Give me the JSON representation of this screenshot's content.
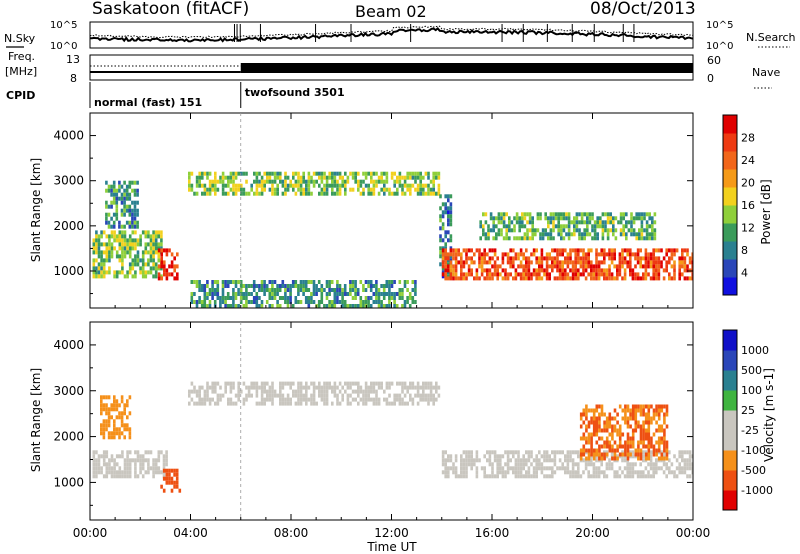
{
  "header": {
    "title": "Saskatoon (fitACF)",
    "beam": "Beam 02",
    "date": "08/Oct/2013"
  },
  "noise_panel": {
    "left_label": "N.Sky",
    "right_label": "N.Search",
    "left_ticks": [
      "10^5",
      "10^0"
    ],
    "right_ticks": [
      "10^5",
      "10^0"
    ]
  },
  "freq_panel": {
    "left_label_1": "Freq.",
    "left_label_2": "[MHz]",
    "left_ticks": [
      "13",
      "8"
    ],
    "right_label": "Nave",
    "right_ticks": [
      "60",
      "0"
    ]
  },
  "cpid": {
    "label": "CPID",
    "modes": [
      {
        "name": "normal (fast) 151",
        "start_hour": 0
      },
      {
        "name": "twofsound 3501",
        "start_hour": 6
      }
    ]
  },
  "time_axis": {
    "xlabel": "Time UT",
    "ticks": [
      "00:00",
      "04:00",
      "08:00",
      "12:00",
      "16:00",
      "20:00",
      "00:00"
    ]
  },
  "colors": {
    "power_scale": [
      "#1010e0",
      "#2a46b8",
      "#2a8090",
      "#3a9b5a",
      "#8fcf3a",
      "#f2d11e",
      "#f59a18",
      "#f2661a",
      "#ee3a12",
      "#e00000"
    ],
    "velocity_scale": [
      "#e00000",
      "#ee5012",
      "#f5901a",
      "#c9c6bf",
      "#c9c6bf",
      "#3fb43f",
      "#2a8090",
      "#2a46b8",
      "#1010c8"
    ]
  },
  "chart_data": [
    {
      "type": "heatmap",
      "title": "Power",
      "xlabel": "Time UT",
      "ylabel": "Slant Range [km]",
      "xlim": [
        0,
        24
      ],
      "ylim": [
        180,
        4500
      ],
      "y_ticks": [
        1000,
        2000,
        3000,
        4000
      ],
      "colorbar": {
        "label": "Power [dB]",
        "ticks": [
          "4",
          "8",
          "12",
          "16",
          "20",
          "24",
          "28"
        ],
        "range": [
          0,
          32
        ]
      },
      "grid": false,
      "features": [
        {
          "t_start": 0.1,
          "t_end": 2.8,
          "range_start": 900,
          "range_end": 1900,
          "power_db": 14
        },
        {
          "t_start": 2.7,
          "t_end": 3.5,
          "range_start": 800,
          "range_end": 1500,
          "power_db": 28
        },
        {
          "t_start": 0.6,
          "t_end": 1.9,
          "range_start": 2000,
          "range_end": 3000,
          "power_db": 10
        },
        {
          "t_start": 3.9,
          "t_end": 13.9,
          "range_start": 2700,
          "range_end": 3200,
          "power_db": 14
        },
        {
          "t_start": 13.9,
          "t_end": 14.4,
          "range_start": 900,
          "range_end": 2700,
          "power_db": 8
        },
        {
          "t_start": 14.0,
          "t_end": 24.0,
          "range_start": 800,
          "range_end": 1500,
          "power_db": 26
        },
        {
          "t_start": 15.5,
          "t_end": 22.5,
          "range_start": 1700,
          "range_end": 2300,
          "power_db": 12
        },
        {
          "t_start": 4.0,
          "t_end": 13.0,
          "range_start": 200,
          "range_end": 800,
          "power_db": 10
        }
      ]
    },
    {
      "type": "heatmap",
      "title": "Velocity",
      "xlabel": "Time UT",
      "ylabel": "Slant Range [km]",
      "xlim": [
        0,
        24
      ],
      "ylim": [
        180,
        4500
      ],
      "y_ticks": [
        1000,
        2000,
        3000,
        4000
      ],
      "colorbar": {
        "label": "Velocity [m s-1]",
        "ticks": [
          "1000",
          "500",
          "100",
          "25",
          "-25",
          "-100",
          "-500",
          "-1000"
        ],
        "range": [
          -1000,
          1000
        ]
      },
      "grid": false,
      "features": [
        {
          "t_start": 0.1,
          "t_end": 3.0,
          "range_start": 1100,
          "range_end": 1700,
          "velocity": 0
        },
        {
          "t_start": 2.8,
          "t_end": 3.6,
          "range_start": 800,
          "range_end": 1300,
          "velocity": -400
        },
        {
          "t_start": 3.9,
          "t_end": 13.9,
          "range_start": 2700,
          "range_end": 3200,
          "velocity": 0
        },
        {
          "t_start": 14.0,
          "t_end": 24.0,
          "range_start": 1100,
          "range_end": 1700,
          "velocity": 0
        },
        {
          "t_start": 19.5,
          "t_end": 23.0,
          "range_start": 1500,
          "range_end": 2700,
          "velocity": -300
        },
        {
          "t_start": 0.4,
          "t_end": 1.6,
          "range_start": 2000,
          "range_end": 2900,
          "velocity": -200
        }
      ]
    }
  ]
}
